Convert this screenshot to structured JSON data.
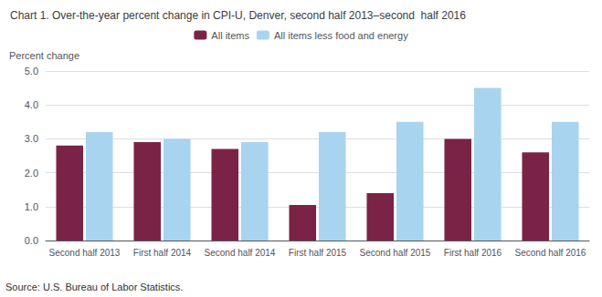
{
  "chart_data": {
    "type": "bar",
    "title": "Chart 1. Over-the-year percent change in CPI-U, Denver, second half 2013–second  half 2016",
    "ylabel": "Percent change",
    "annotations": [
      "Source: U.S. Bureau of Labor Statistics."
    ],
    "categories": [
      "Second half 2013",
      "First half 2014",
      "Second half 2014",
      "First half 2015",
      "Second half 2015",
      "First half 2016",
      "Second half 2016"
    ],
    "series": [
      {
        "name": "All items",
        "color": "#7b2346",
        "values": [
          2.8,
          2.9,
          2.7,
          1.05,
          1.4,
          3.0,
          2.6
        ]
      },
      {
        "name": "All items less food and energy",
        "color": "#a8d4f0",
        "values": [
          3.2,
          3.0,
          2.9,
          3.2,
          3.5,
          4.5,
          3.5
        ]
      }
    ],
    "ylim": [
      0.0,
      5.0
    ],
    "yticks": [
      {
        "value": 0,
        "label": "0.0"
      },
      {
        "value": 1,
        "label": "1.0"
      },
      {
        "value": 2,
        "label": "2.0"
      },
      {
        "value": 3,
        "label": "3.0"
      },
      {
        "value": 4,
        "label": "4.0"
      },
      {
        "value": 5,
        "label": "5.0"
      }
    ],
    "grid": true,
    "legend": "top"
  }
}
